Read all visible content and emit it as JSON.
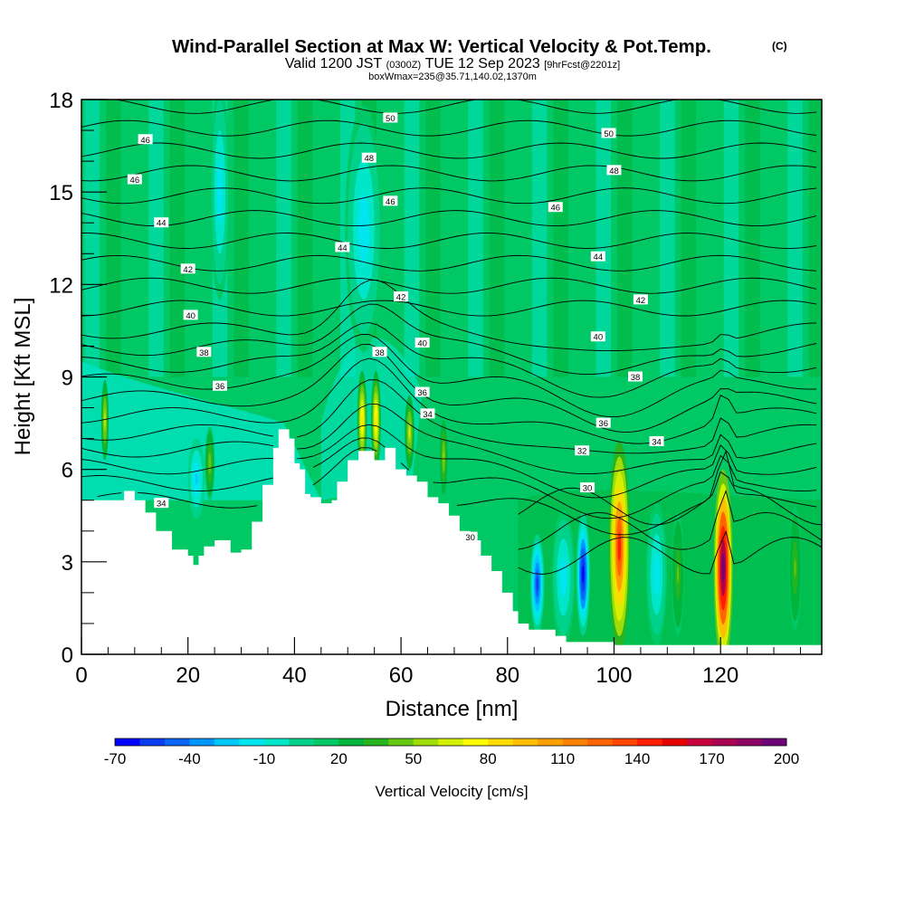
{
  "header": {
    "title": "Wind-Parallel Section at Max W: Vertical Velocity & Pot.Temp.",
    "copyright": "(C)",
    "valid_prefix": "Valid 1200 JST",
    "valid_utc": "(0300Z)",
    "valid_date": "TUE 12 Sep 2023",
    "forecast": "[9hrFcst@2201z]",
    "box_info": "boxWmax=235@35.71,140.02,1370m"
  },
  "chart_data": {
    "type": "heatmap",
    "xlabel": "Distance [nm]",
    "ylabel": "Height [Kft MSL]",
    "xlim": [
      0,
      139
    ],
    "ylim": [
      0,
      18
    ],
    "x_ticks": [
      "0",
      "20",
      "40",
      "60",
      "80",
      "100",
      "120"
    ],
    "y_ticks": [
      "0",
      "3",
      "6",
      "9",
      "12",
      "15",
      "18"
    ],
    "colorbar": {
      "label": "Vertical Velocity [cm/s]",
      "tick_labels": [
        "-70",
        "-40",
        "-10",
        "20",
        "50",
        "80",
        "110",
        "140",
        "170",
        "200"
      ],
      "levels": [
        -70,
        -60,
        -50,
        -40,
        -30,
        -20,
        -10,
        0,
        10,
        20,
        30,
        40,
        50,
        60,
        70,
        80,
        90,
        100,
        110,
        120,
        130,
        140,
        150,
        160,
        170,
        180,
        190,
        200
      ],
      "colors": [
        "#0000ff",
        "#0a3cf0",
        "#0a64f5",
        "#0096ff",
        "#00c8ff",
        "#00e6f0",
        "#00e6c8",
        "#00d28c",
        "#00c864",
        "#00b43c",
        "#28b41e",
        "#64c814",
        "#a0dc0a",
        "#d2f000",
        "#ffff00",
        "#ffdc00",
        "#ffbe00",
        "#ffa000",
        "#ff8200",
        "#ff6400",
        "#ff4600",
        "#ff1e00",
        "#e60000",
        "#c8003c",
        "#aa0050",
        "#8c0064",
        "#6e0078"
      ]
    },
    "terrain_profile": [
      [
        0,
        5
      ],
      [
        7,
        5
      ],
      [
        8,
        5.3
      ],
      [
        10,
        5
      ],
      [
        12,
        4.6
      ],
      [
        14,
        4.0
      ],
      [
        17,
        3.4
      ],
      [
        20,
        3.2
      ],
      [
        21,
        2.9
      ],
      [
        22,
        3.2
      ],
      [
        23,
        3.5
      ],
      [
        25,
        3.7
      ],
      [
        28,
        3.3
      ],
      [
        30,
        3.4
      ],
      [
        32,
        4.3
      ],
      [
        34,
        5.5
      ],
      [
        36,
        6.7
      ],
      [
        37,
        7.3
      ],
      [
        39,
        7.0
      ],
      [
        40,
        6.2
      ],
      [
        41,
        6.0
      ],
      [
        42,
        5.2
      ],
      [
        43,
        5.1
      ],
      [
        45,
        4.9
      ],
      [
        47,
        5.0
      ],
      [
        48,
        5.6
      ],
      [
        50,
        6.3
      ],
      [
        52,
        6.6
      ],
      [
        55,
        6.3
      ],
      [
        57,
        6.7
      ],
      [
        59,
        6.0
      ],
      [
        61,
        5.8
      ],
      [
        63,
        5.6
      ],
      [
        65,
        5.1
      ],
      [
        67,
        4.9
      ],
      [
        69,
        4.5
      ],
      [
        71,
        4.0
      ],
      [
        73,
        3.7
      ],
      [
        75,
        3.2
      ],
      [
        77,
        2.7
      ],
      [
        79,
        2.0
      ],
      [
        81,
        1.4
      ],
      [
        82,
        1.0
      ],
      [
        84,
        0.8
      ],
      [
        89,
        0.6
      ],
      [
        91,
        0.4
      ],
      [
        100,
        0.3
      ],
      [
        139,
        0.3
      ]
    ],
    "theta_labels": [
      {
        "x": 12,
        "y": 16.7,
        "v": "46"
      },
      {
        "x": 10,
        "y": 15.4,
        "v": "46"
      },
      {
        "x": 15,
        "y": 14.0,
        "v": "44"
      },
      {
        "x": 20,
        "y": 12.5,
        "v": "42"
      },
      {
        "x": 20.5,
        "y": 11.0,
        "v": "40"
      },
      {
        "x": 23,
        "y": 9.8,
        "v": "38"
      },
      {
        "x": 26,
        "y": 8.7,
        "v": "36"
      },
      {
        "x": 15,
        "y": 4.9,
        "v": "34"
      },
      {
        "x": 58,
        "y": 17.4,
        "v": "50"
      },
      {
        "x": 54,
        "y": 16.1,
        "v": "48"
      },
      {
        "x": 58,
        "y": 14.7,
        "v": "46"
      },
      {
        "x": 49,
        "y": 13.2,
        "v": "44"
      },
      {
        "x": 60,
        "y": 11.6,
        "v": "42"
      },
      {
        "x": 64,
        "y": 10.1,
        "v": "40"
      },
      {
        "x": 56,
        "y": 9.8,
        "v": "38"
      },
      {
        "x": 64,
        "y": 8.5,
        "v": "36"
      },
      {
        "x": 65,
        "y": 7.8,
        "v": "34"
      },
      {
        "x": 73,
        "y": 3.8,
        "v": "30"
      },
      {
        "x": 99,
        "y": 16.9,
        "v": "50"
      },
      {
        "x": 100,
        "y": 15.7,
        "v": "48"
      },
      {
        "x": 89,
        "y": 14.5,
        "v": "46"
      },
      {
        "x": 97,
        "y": 12.9,
        "v": "44"
      },
      {
        "x": 105,
        "y": 11.5,
        "v": "42"
      },
      {
        "x": 97,
        "y": 10.3,
        "v": "40"
      },
      {
        "x": 104,
        "y": 9.0,
        "v": "38"
      },
      {
        "x": 98,
        "y": 7.5,
        "v": "36"
      },
      {
        "x": 108,
        "y": 6.9,
        "v": "34"
      },
      {
        "x": 94,
        "y": 6.6,
        "v": "32"
      },
      {
        "x": 95,
        "y": 5.4,
        "v": "30"
      }
    ],
    "updraft_cells": [
      {
        "x": 101,
        "z": 3.5,
        "w": 2.0,
        "h": 3.4,
        "peak": 140
      },
      {
        "x": 120.5,
        "z": 2.8,
        "w": 1.8,
        "h": 3.2,
        "peak": 200
      },
      {
        "x": 52.7,
        "z": 7.6,
        "w": 0.9,
        "h": 1.6,
        "peak": 85
      },
      {
        "x": 55.3,
        "z": 7.6,
        "w": 0.9,
        "h": 1.6,
        "peak": 85
      },
      {
        "x": 61.6,
        "z": 7.2,
        "w": 0.9,
        "h": 1.2,
        "peak": 60
      },
      {
        "x": 68,
        "z": 6.4,
        "w": 0.7,
        "h": 1.2,
        "peak": 55
      },
      {
        "x": 4.4,
        "z": 7.6,
        "w": 0.7,
        "h": 1.3,
        "peak": 60
      },
      {
        "x": 24.1,
        "z": 6.2,
        "w": 0.9,
        "h": 1.2,
        "peak": 45
      },
      {
        "x": 112,
        "z": 2.6,
        "w": 1.2,
        "h": 2.0,
        "peak": 40
      },
      {
        "x": 134,
        "z": 2.8,
        "w": 1.2,
        "h": 2.0,
        "peak": 40
      }
    ],
    "downdraft_cells": [
      {
        "x": 85.6,
        "z": 2.3,
        "w": 1.3,
        "h": 1.6,
        "peak": -60
      },
      {
        "x": 94.2,
        "z": 2.6,
        "w": 1.3,
        "h": 2.0,
        "peak": -65
      },
      {
        "x": 21.6,
        "z": 5.7,
        "w": 1.6,
        "h": 1.3,
        "peak": -25
      },
      {
        "x": 90.5,
        "z": 2.5,
        "w": 2.2,
        "h": 2.2,
        "peak": -15
      },
      {
        "x": 108,
        "z": 2.6,
        "w": 2.0,
        "h": 2.3,
        "peak": -15
      },
      {
        "x": 26,
        "z": 15,
        "w": 1.8,
        "h": 3.5,
        "peak": -20
      },
      {
        "x": 53,
        "z": 13.8,
        "w": 3.5,
        "h": 4.0,
        "peak": -15
      }
    ]
  }
}
